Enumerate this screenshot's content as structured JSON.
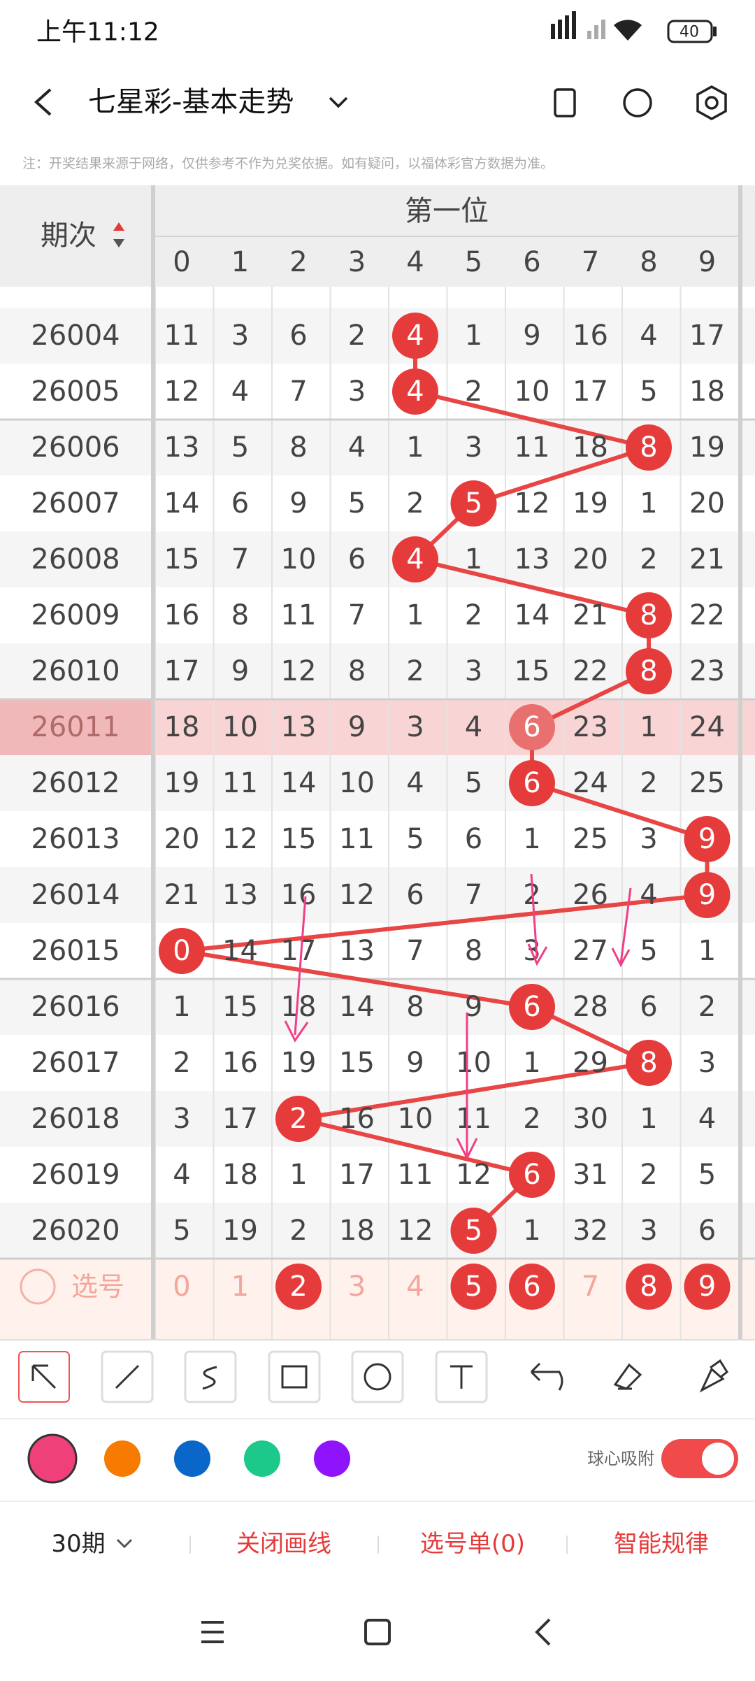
{
  "status": {
    "time": "上午11:12",
    "battery": "40"
  },
  "header": {
    "title": "七星彩-基本走势"
  },
  "notice": "注：开奖结果来源于网络，仅供参考不作为兑奖依据。如有疑问，以福体彩官方数据为准。",
  "table": {
    "period_header": "期次",
    "group_header": "第一位",
    "columns": [
      "0",
      "1",
      "2",
      "3",
      "4",
      "5",
      "6",
      "7",
      "8",
      "9"
    ],
    "rows": [
      {
        "period": "26004",
        "cells": [
          "11",
          "3",
          "6",
          "2",
          "4",
          "1",
          "9",
          "16",
          "4",
          "17"
        ],
        "hit": 4
      },
      {
        "period": "26005",
        "cells": [
          "12",
          "4",
          "7",
          "3",
          "4",
          "2",
          "10",
          "17",
          "5",
          "18"
        ],
        "hit": 4
      },
      {
        "period": "26006",
        "cells": [
          "13",
          "5",
          "8",
          "4",
          "1",
          "3",
          "11",
          "18",
          "8",
          "19"
        ],
        "hit": 8
      },
      {
        "period": "26007",
        "cells": [
          "14",
          "6",
          "9",
          "5",
          "2",
          "5",
          "12",
          "19",
          "1",
          "20"
        ],
        "hit": 5
      },
      {
        "period": "26008",
        "cells": [
          "15",
          "7",
          "10",
          "6",
          "4",
          "1",
          "13",
          "20",
          "2",
          "21"
        ],
        "hit": 4
      },
      {
        "period": "26009",
        "cells": [
          "16",
          "8",
          "11",
          "7",
          "1",
          "2",
          "14",
          "21",
          "8",
          "22"
        ],
        "hit": 8
      },
      {
        "period": "26010",
        "cells": [
          "17",
          "9",
          "12",
          "8",
          "2",
          "3",
          "15",
          "22",
          "8",
          "23"
        ],
        "hit": 8
      },
      {
        "period": "26011",
        "cells": [
          "18",
          "10",
          "13",
          "9",
          "3",
          "4",
          "6",
          "23",
          "1",
          "24"
        ],
        "hit": 6,
        "highlighted": true
      },
      {
        "period": "26012",
        "cells": [
          "19",
          "11",
          "14",
          "10",
          "4",
          "5",
          "6",
          "24",
          "2",
          "25"
        ],
        "hit": 6
      },
      {
        "period": "26013",
        "cells": [
          "20",
          "12",
          "15",
          "11",
          "5",
          "6",
          "1",
          "25",
          "3",
          "9"
        ],
        "hit": 9
      },
      {
        "period": "26014",
        "cells": [
          "21",
          "13",
          "16",
          "12",
          "6",
          "7",
          "2",
          "26",
          "4",
          "9"
        ],
        "hit": 9
      },
      {
        "period": "26015",
        "cells": [
          "0",
          "14",
          "17",
          "13",
          "7",
          "8",
          "3",
          "27",
          "5",
          "1"
        ],
        "hit": 0
      },
      {
        "period": "26016",
        "cells": [
          "1",
          "15",
          "18",
          "14",
          "8",
          "9",
          "6",
          "28",
          "6",
          "2"
        ],
        "hit": 6
      },
      {
        "period": "26017",
        "cells": [
          "2",
          "16",
          "19",
          "15",
          "9",
          "10",
          "1",
          "29",
          "8",
          "3"
        ],
        "hit": 8
      },
      {
        "period": "26018",
        "cells": [
          "3",
          "17",
          "2",
          "16",
          "10",
          "11",
          "2",
          "30",
          "1",
          "4"
        ],
        "hit": 2
      },
      {
        "period": "26019",
        "cells": [
          "4",
          "18",
          "1",
          "17",
          "11",
          "12",
          "6",
          "31",
          "2",
          "5"
        ],
        "hit": 6
      },
      {
        "period": "26020",
        "cells": [
          "5",
          "19",
          "2",
          "18",
          "12",
          "5",
          "1",
          "32",
          "3",
          "6"
        ],
        "hit": 5
      }
    ],
    "select_row": {
      "label": "选号",
      "numbers": [
        "0",
        "1",
        "2",
        "3",
        "4",
        "5",
        "6",
        "7",
        "8",
        "9"
      ],
      "selected": [
        2,
        5,
        6,
        8,
        9
      ]
    }
  },
  "toolbar": {
    "magnet_label": "球心吸附"
  },
  "footer": {
    "period_select": "30期",
    "buttons": [
      "关闭画线",
      "选号单(0)",
      "智能规律"
    ]
  }
}
